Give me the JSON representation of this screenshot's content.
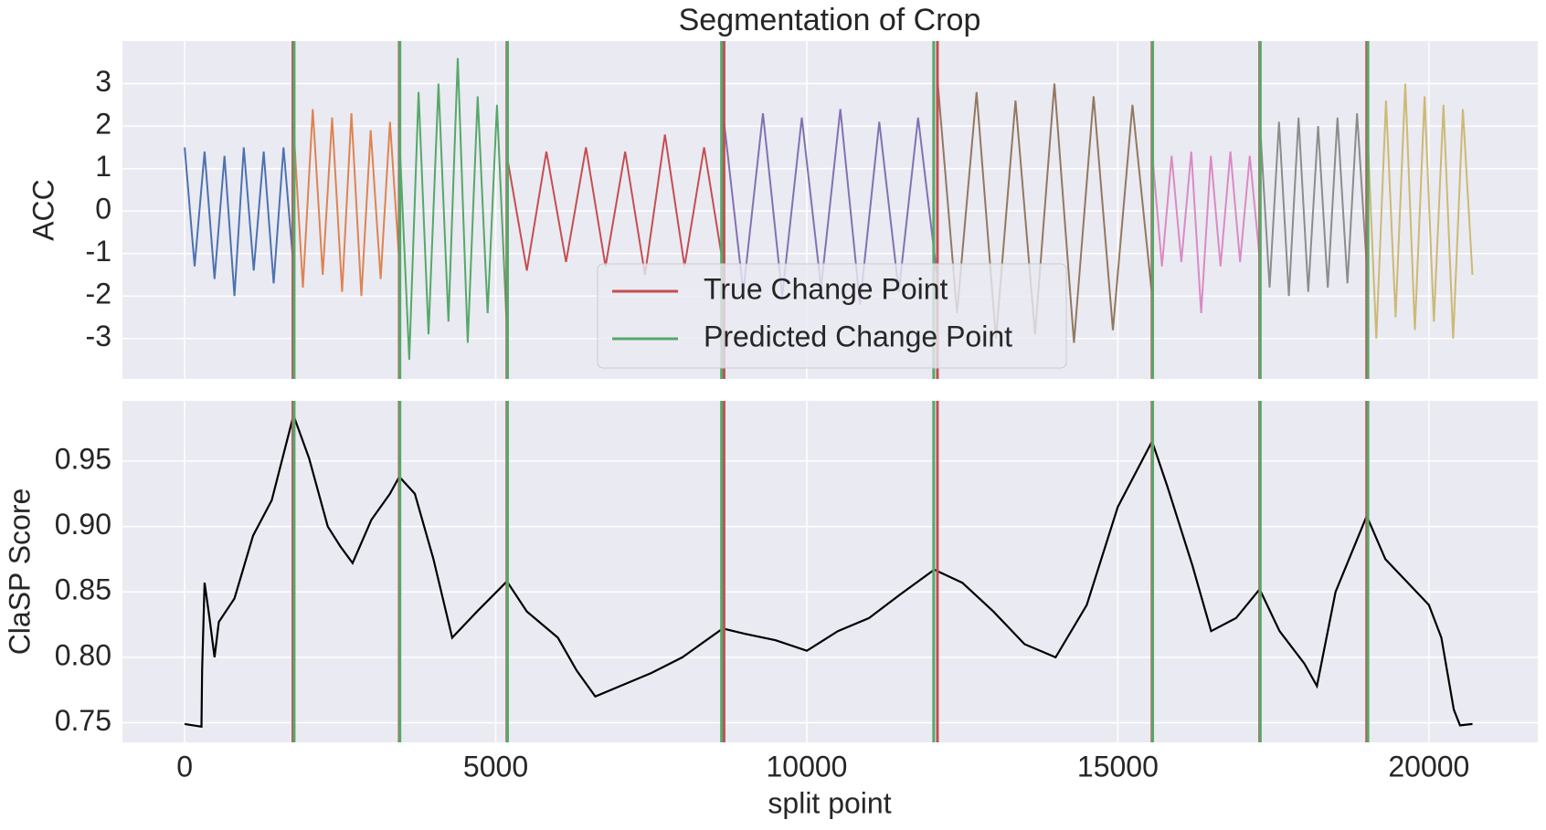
{
  "chart_data": [
    {
      "type": "line",
      "title": "Segmentation of Crop",
      "ylabel": "ACC",
      "ylim": [
        -3.95,
        4.0
      ],
      "yticks": [
        -3,
        -2,
        -1,
        0,
        1,
        2,
        3
      ],
      "grid": true,
      "series": [
        {
          "color": "#4c72b0",
          "x": [
            0,
            160,
            320,
            480,
            640,
            800,
            950,
            1110,
            1270,
            1430,
            1590,
            1750
          ],
          "values": [
            1.5,
            -1.3,
            1.4,
            -1.6,
            1.3,
            -2.0,
            1.5,
            -1.4,
            1.4,
            -1.7,
            1.5,
            -1.3
          ]
        },
        {
          "color": "#dd8452",
          "x": [
            1750,
            1900,
            2060,
            2220,
            2370,
            2530,
            2680,
            2840,
            2990,
            3150,
            3300,
            3450
          ],
          "values": [
            2.0,
            -1.8,
            2.4,
            -1.5,
            2.2,
            -1.9,
            2.3,
            -2.0,
            1.9,
            -1.6,
            2.1,
            -1.2
          ]
        },
        {
          "color": "#55a868",
          "x": [
            3450,
            3610,
            3760,
            3920,
            4080,
            4240,
            4390,
            4550,
            4710,
            4870,
            5020,
            5180
          ],
          "values": [
            1.8,
            -3.5,
            2.8,
            -2.9,
            3.0,
            -2.6,
            3.6,
            -3.1,
            2.7,
            -2.4,
            2.5,
            -2.8
          ]
        },
        {
          "color": "#c44e52",
          "x": [
            5180,
            5500,
            5815,
            6130,
            6450,
            6765,
            7080,
            7400,
            7720,
            8035,
            8350,
            8670
          ],
          "values": [
            1.3,
            -1.4,
            1.4,
            -1.2,
            1.5,
            -1.3,
            1.4,
            -1.5,
            1.8,
            -1.3,
            1.5,
            -1.4
          ]
        },
        {
          "color": "#8172b3",
          "x": [
            8670,
            8980,
            9295,
            9605,
            9920,
            10230,
            10540,
            10855,
            11165,
            11480,
            11790,
            12100
          ],
          "values": [
            2.1,
            -1.9,
            2.3,
            -2.0,
            2.2,
            -1.8,
            2.4,
            -2.2,
            2.1,
            -1.9,
            2.2,
            -1.6
          ]
        },
        {
          "color": "#937860",
          "x": [
            12100,
            12415,
            12730,
            13040,
            13355,
            13670,
            13980,
            14295,
            14610,
            14920,
            15235,
            15550
          ],
          "values": [
            3.1,
            -2.4,
            2.8,
            -3.0,
            2.6,
            -2.9,
            3.0,
            -3.1,
            2.7,
            -2.8,
            2.5,
            -2.0
          ]
        },
        {
          "color": "#da8bc3",
          "x": [
            15550,
            15710,
            15865,
            16020,
            16180,
            16340,
            16495,
            16650,
            16810,
            16965,
            17120,
            17280
          ],
          "values": [
            1.4,
            -1.3,
            1.3,
            -1.2,
            1.4,
            -2.4,
            1.3,
            -1.3,
            1.4,
            -1.2,
            1.3,
            -1.1
          ]
        },
        {
          "color": "#8c8c8c",
          "x": [
            17280,
            17440,
            17590,
            17750,
            17905,
            18060,
            18220,
            18375,
            18530,
            18690,
            18845,
            19000
          ],
          "values": [
            2.2,
            -1.8,
            2.1,
            -2.0,
            2.2,
            -1.9,
            2.0,
            -1.8,
            2.2,
            -1.7,
            2.3,
            -1.3
          ]
        },
        {
          "color": "#ccb974",
          "x": [
            19000,
            19155,
            19310,
            19465,
            19620,
            19775,
            19930,
            20080,
            20235,
            20390,
            20545,
            20700
          ],
          "values": [
            2.3,
            -3.0,
            2.6,
            -2.5,
            3.0,
            -2.8,
            2.7,
            -2.6,
            2.5,
            -3.0,
            2.4,
            -1.5
          ]
        }
      ],
      "change_points": [
        {
          "name": "True Change Point",
          "color": "#c44e52",
          "values": [
            1740,
            3450,
            5180,
            8670,
            12100,
            15550,
            17280,
            19000
          ]
        },
        {
          "name": "Predicted Change Point",
          "color": "#55a868",
          "values": [
            1760,
            3460,
            5190,
            8630,
            12040,
            15560,
            17290,
            19020
          ]
        }
      ],
      "legend": "lower center"
    },
    {
      "type": "line",
      "xlabel": "split point",
      "ylabel": "ClaSP Score",
      "color": "#000000",
      "xlim": [
        -1000,
        21750
      ],
      "xticks": [
        0,
        5000,
        10000,
        15000,
        20000
      ],
      "ylim": [
        0.735,
        0.996
      ],
      "yticks": [
        0.75,
        {
          "value": 0.8,
          "label": "0.80"
        },
        0.85,
        {
          "value": 0.9,
          "label": "0.90"
        },
        0.95
      ],
      "grid": true,
      "x": [
        0,
        270,
        280,
        320,
        400,
        480,
        550,
        800,
        1100,
        1400,
        1750,
        2000,
        2300,
        2500,
        2700,
        3000,
        3300,
        3450,
        3700,
        4000,
        4300,
        4700,
        5180,
        5500,
        6000,
        6300,
        6600,
        7000,
        7500,
        8000,
        8650,
        9000,
        9500,
        10000,
        10500,
        11000,
        11500,
        12050,
        12500,
        13000,
        13500,
        14000,
        14500,
        15000,
        15550,
        15800,
        16200,
        16500,
        16900,
        17280,
        17600,
        18000,
        18200,
        18500,
        19000,
        19300,
        19700,
        20000,
        20200,
        20400,
        20500,
        20700
      ],
      "values": [
        0.749,
        0.747,
        0.79,
        0.857,
        0.83,
        0.8,
        0.827,
        0.845,
        0.893,
        0.92,
        0.985,
        0.952,
        0.9,
        0.885,
        0.872,
        0.905,
        0.925,
        0.938,
        0.925,
        0.875,
        0.815,
        0.835,
        0.858,
        0.835,
        0.815,
        0.79,
        0.77,
        0.778,
        0.788,
        0.8,
        0.822,
        0.818,
        0.813,
        0.805,
        0.82,
        0.83,
        0.848,
        0.867,
        0.857,
        0.835,
        0.81,
        0.8,
        0.84,
        0.915,
        0.965,
        0.93,
        0.87,
        0.82,
        0.83,
        0.852,
        0.82,
        0.795,
        0.778,
        0.85,
        0.908,
        0.875,
        0.855,
        0.84,
        0.815,
        0.76,
        0.748,
        0.749
      ]
    }
  ]
}
